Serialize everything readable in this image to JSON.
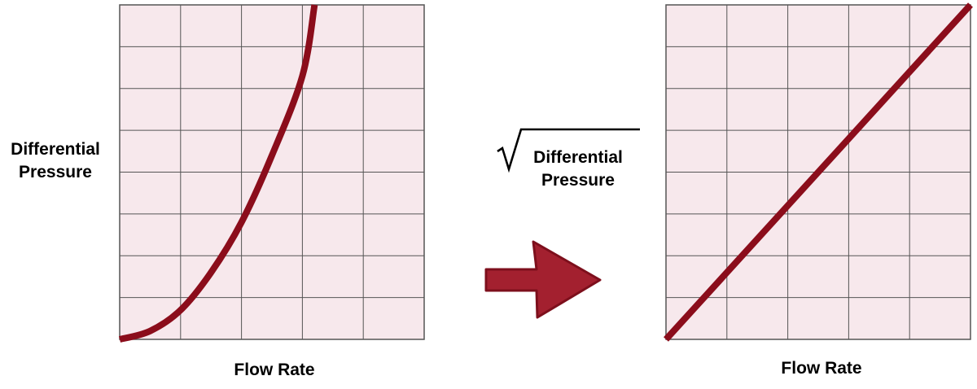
{
  "chart_data": [
    {
      "type": "line",
      "title": "",
      "xlabel": "Flow Rate",
      "ylabel_lines": [
        "Differential",
        "Pressure"
      ],
      "xlim": [
        0,
        5
      ],
      "ylim": [
        0,
        8
      ],
      "grid": true,
      "series": [
        {
          "x": [
            0,
            0.5,
            1,
            1.5,
            2,
            2.5,
            3,
            3.2
          ],
          "y": [
            0,
            0.2,
            0.7,
            1.6,
            2.8,
            4.4,
            6.3,
            8.0
          ]
        }
      ]
    },
    {
      "type": "line",
      "title": "",
      "xlabel": "Flow Rate",
      "ylabel_prefix": "√",
      "ylabel_lines": [
        "Differential",
        "Pressure"
      ],
      "xlim": [
        0,
        5
      ],
      "ylim": [
        0,
        8
      ],
      "grid": true,
      "series": [
        {
          "x": [
            0,
            5
          ],
          "y": [
            0,
            8
          ]
        }
      ]
    }
  ],
  "colors": {
    "plot_background": "#f7e8ec",
    "grid_line": "#555555",
    "curve": "#8b0d1b",
    "arrow_fill": "#a3202f",
    "arrow_stroke": "#7d0f1c"
  },
  "arrow": {
    "icon": "right-arrow-icon"
  }
}
